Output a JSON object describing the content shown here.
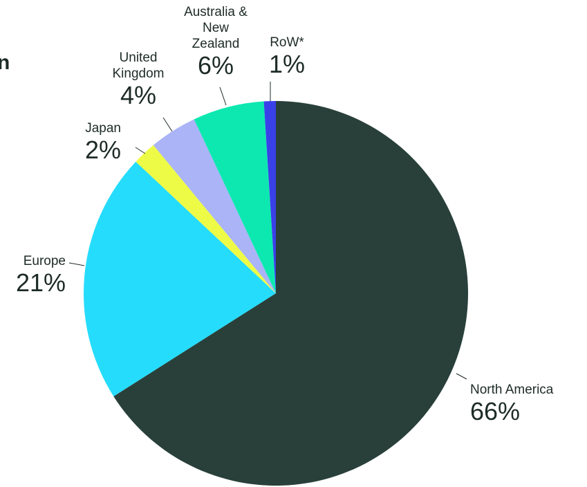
{
  "chart_data": {
    "type": "pie",
    "title": "n",
    "categories": [
      "North America",
      "Europe",
      "Japan",
      "United Kingdom",
      "Australia & New Zealand",
      "RoW*"
    ],
    "values": [
      66,
      21,
      2,
      4,
      6,
      1
    ],
    "value_labels": [
      "66%",
      "21%",
      "2%",
      "4%",
      "6%",
      "1%"
    ],
    "colors": [
      "#29403a",
      "#25dcfc",
      "#eefb46",
      "#aab4f7",
      "#0de8b0",
      "#3a40e8"
    ]
  }
}
